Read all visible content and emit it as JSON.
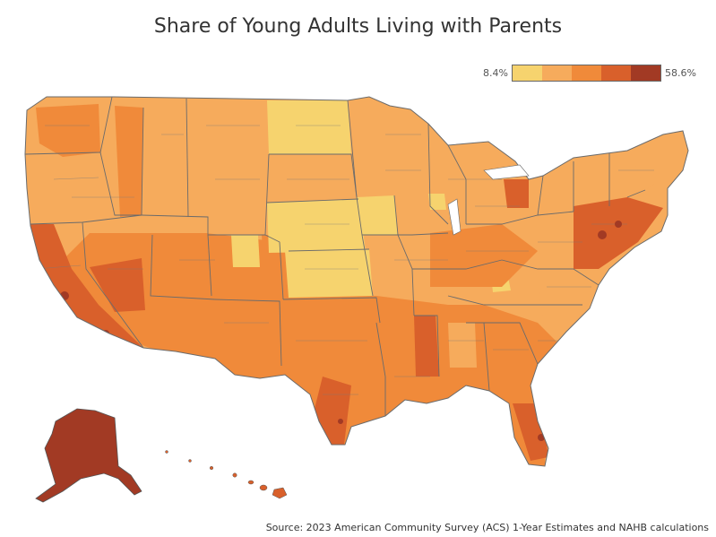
{
  "title": "Share of Young Adults Living with Parents",
  "legend": {
    "min_label": "8.4%",
    "max_label": "58.6%",
    "bins": [
      "#f6d36e",
      "#f6ab5c",
      "#f08a3a",
      "#d9602b",
      "#a23a24"
    ]
  },
  "source": "Source: 2023 American Community Survey (ACS) 1-Year Estimates and NAHB calculations",
  "colors": {
    "boundary": "#6b6b6b",
    "background": "#ffffff"
  }
}
